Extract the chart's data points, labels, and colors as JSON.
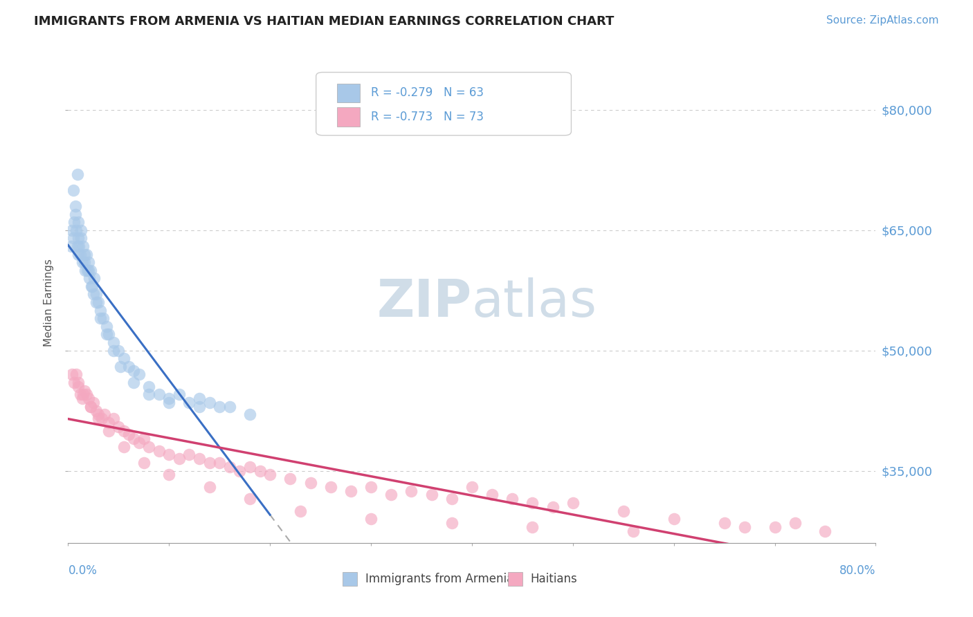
{
  "title": "IMMIGRANTS FROM ARMENIA VS HAITIAN MEDIAN EARNINGS CORRELATION CHART",
  "source": "Source: ZipAtlas.com",
  "ylabel": "Median Earnings",
  "yticks": [
    35000,
    50000,
    65000,
    80000
  ],
  "ytick_labels": [
    "$35,000",
    "$50,000",
    "$65,000",
    "$80,000"
  ],
  "xlim": [
    0.0,
    80.0
  ],
  "ylim": [
    26000,
    86000
  ],
  "legend_r_armenia": "R = -0.279",
  "legend_n_armenia": "N = 63",
  "legend_r_haiti": "R = -0.773",
  "legend_n_haiti": "N = 73",
  "legend_label_armenia": "Immigrants from Armenia",
  "legend_label_haiti": "Haitians",
  "armenia_color": "#a8c8e8",
  "haiti_color": "#f4a8c0",
  "armenia_line_color": "#3a6fc4",
  "haiti_line_color": "#d04070",
  "text_color_blue": "#5b9bd5",
  "watermark_color": "#d0dde8",
  "armenia_x": [
    0.3,
    0.4,
    0.5,
    0.6,
    0.7,
    0.8,
    0.9,
    1.0,
    1.0,
    1.1,
    1.2,
    1.3,
    1.4,
    1.5,
    1.6,
    1.7,
    1.8,
    1.9,
    2.0,
    2.1,
    2.2,
    2.3,
    2.5,
    2.6,
    2.8,
    3.0,
    3.2,
    3.5,
    3.8,
    4.0,
    4.5,
    5.0,
    5.5,
    6.0,
    6.5,
    7.0,
    8.0,
    9.0,
    10.0,
    11.0,
    12.0,
    13.0,
    14.0,
    15.0,
    0.5,
    0.7,
    1.0,
    1.3,
    1.6,
    2.0,
    2.4,
    2.8,
    3.2,
    3.8,
    4.5,
    5.2,
    6.5,
    8.0,
    10.0,
    13.0,
    16.0,
    18.0,
    0.9
  ],
  "armenia_y": [
    63000,
    65000,
    64000,
    66000,
    67000,
    65000,
    63000,
    62000,
    64000,
    63000,
    62000,
    64000,
    61000,
    63000,
    61000,
    60000,
    62000,
    60000,
    61000,
    59000,
    60000,
    58000,
    57000,
    59000,
    57000,
    56000,
    55000,
    54000,
    53000,
    52000,
    51000,
    50000,
    49000,
    48000,
    47500,
    47000,
    45500,
    44500,
    44000,
    44500,
    43500,
    44000,
    43500,
    43000,
    70000,
    68000,
    66000,
    65000,
    62000,
    60000,
    58000,
    56000,
    54000,
    52000,
    50000,
    48000,
    46000,
    44500,
    43500,
    43000,
    43000,
    42000,
    72000
  ],
  "haiti_x": [
    0.4,
    0.6,
    0.8,
    1.0,
    1.2,
    1.4,
    1.6,
    1.8,
    2.0,
    2.2,
    2.5,
    2.8,
    3.0,
    3.3,
    3.6,
    4.0,
    4.5,
    5.0,
    5.5,
    6.0,
    6.5,
    7.0,
    7.5,
    8.0,
    9.0,
    10.0,
    11.0,
    12.0,
    13.0,
    14.0,
    15.0,
    16.0,
    17.0,
    18.0,
    19.0,
    20.0,
    22.0,
    24.0,
    26.0,
    28.0,
    30.0,
    32.0,
    34.0,
    36.0,
    38.0,
    40.0,
    42.0,
    44.0,
    46.0,
    48.0,
    50.0,
    55.0,
    60.0,
    65.0,
    70.0,
    75.0,
    1.0,
    1.5,
    2.2,
    3.0,
    4.0,
    5.5,
    7.5,
    10.0,
    14.0,
    18.0,
    23.0,
    30.0,
    38.0,
    46.0,
    56.0,
    67.0,
    72.0
  ],
  "haiti_y": [
    47000,
    46000,
    47000,
    45500,
    44500,
    44000,
    45000,
    44500,
    44000,
    43000,
    43500,
    42500,
    42000,
    41500,
    42000,
    41000,
    41500,
    40500,
    40000,
    39500,
    39000,
    38500,
    39000,
    38000,
    37500,
    37000,
    36500,
    37000,
    36500,
    36000,
    36000,
    35500,
    35000,
    35500,
    35000,
    34500,
    34000,
    33500,
    33000,
    32500,
    33000,
    32000,
    32500,
    32000,
    31500,
    33000,
    32000,
    31500,
    31000,
    30500,
    31000,
    30000,
    29000,
    28500,
    28000,
    27500,
    46000,
    44500,
    43000,
    41500,
    40000,
    38000,
    36000,
    34500,
    33000,
    31500,
    30000,
    29000,
    28500,
    28000,
    27500,
    28000,
    28500
  ]
}
